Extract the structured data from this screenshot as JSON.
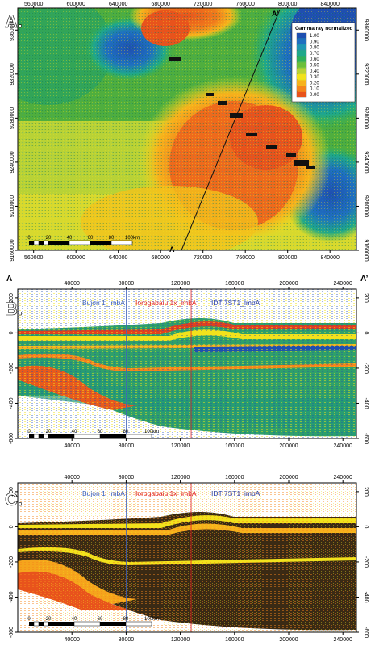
{
  "panels": [
    {
      "label": "A.",
      "type": "heatmap",
      "section_start": "A",
      "section_end": "A’",
      "x_ticks": [
        "560000",
        "600000",
        "640000",
        "680000",
        "720000",
        "760000",
        "800000",
        "840000"
      ],
      "y_ticks": [
        "9360000",
        "9320000",
        "9280000",
        "9240000",
        "9200000",
        "9160000"
      ],
      "legend": {
        "title": "Gamma ray normalized",
        "entries": [
          {
            "value": "1.00",
            "color": "#1f4fb0"
          },
          {
            "value": "0.90",
            "color": "#1f6fc0"
          },
          {
            "value": "0.80",
            "color": "#1f96b4"
          },
          {
            "value": "0.70",
            "color": "#1fa88a"
          },
          {
            "value": "0.60",
            "color": "#2fb05a"
          },
          {
            "value": "0.50",
            "color": "#6cbf3a"
          },
          {
            "value": "0.40",
            "color": "#b8d236"
          },
          {
            "value": "0.30",
            "color": "#f2e21c"
          },
          {
            "value": "0.20",
            "color": "#f7b21c"
          },
          {
            "value": "0.10",
            "color": "#f5851c"
          },
          {
            "value": "0.00",
            "color": "#e8531c"
          }
        ]
      },
      "scale_bar": {
        "ticks": [
          "0",
          "20",
          "40",
          "60",
          "80",
          "100km"
        ]
      }
    },
    {
      "label": "B.",
      "type": "heatmap",
      "section_start": "A",
      "section_end": "A’",
      "x_ticks": [
        "40000",
        "80000",
        "120000",
        "160000",
        "200000",
        "240000"
      ],
      "y_ticks": [
        "200",
        "0",
        "-200",
        "-400",
        "-600"
      ],
      "wells": [
        {
          "name": "Bujon 1_imbA",
          "color": "#3a5fc0",
          "x": 80000
        },
        {
          "name": "Iorogabaiu 1x_imbA",
          "color": "#e02020",
          "x": 128000
        },
        {
          "name": "IDT 7ST1_imbA",
          "color": "#2a3fa8",
          "x": 142000
        }
      ],
      "scale_bar": {
        "ticks": [
          "0",
          "20",
          "40",
          "60",
          "80",
          "100km"
        ]
      }
    },
    {
      "label": "C.",
      "type": "heatmap",
      "section_start": "",
      "section_end": "",
      "x_ticks": [
        "40000",
        "80000",
        "120000",
        "160000",
        "200000",
        "240000"
      ],
      "y_ticks": [
        "200",
        "0",
        "-200",
        "-400",
        "-600"
      ],
      "wells": [
        {
          "name": "Bujon 1_imbA",
          "color": "#3a5fc0",
          "x": 80000
        },
        {
          "name": "Iorogabaiu 1x_imbA",
          "color": "#e02020",
          "x": 128000
        },
        {
          "name": "IDT 7ST1_imbA",
          "color": "#2a3fa8",
          "x": 142000
        }
      ],
      "scale_bar": {
        "ticks": [
          "0",
          "20",
          "40",
          "60",
          "80",
          "100km"
        ]
      }
    }
  ],
  "chart_data": [
    {
      "type": "heatmap",
      "title": "",
      "legend_title": "Gamma ray normalized",
      "x_ticks": [
        560000,
        600000,
        640000,
        680000,
        720000,
        760000,
        800000,
        840000
      ],
      "y_ticks": [
        9360000,
        9320000,
        9280000,
        9240000,
        9200000,
        9160000
      ],
      "xlim": [
        545000,
        865000
      ],
      "ylim": [
        9160000,
        9380000
      ],
      "value_range": [
        0.0,
        1.0
      ],
      "section_line": {
        "from": "A",
        "to": "A’",
        "start": [
          697000,
          9158000
        ],
        "end": [
          775000,
          9375000
        ]
      },
      "grid": false,
      "legend_position": "top-right"
    },
    {
      "type": "heatmap",
      "title": "",
      "x_ticks": [
        40000,
        80000,
        120000,
        160000,
        200000,
        240000
      ],
      "y_ticks": [
        200,
        0,
        -200,
        -400,
        -600
      ],
      "xlim": [
        0,
        250000
      ],
      "ylim": [
        -600,
        250
      ],
      "wells": [
        {
          "name": "Bujon 1_imbA",
          "x": 80000
        },
        {
          "name": "Iorogabaiu 1x_imbA",
          "x": 128000
        },
        {
          "name": "IDT 7ST1_imbA",
          "x": 142000
        }
      ],
      "grid": false
    },
    {
      "type": "heatmap",
      "title": "",
      "x_ticks": [
        40000,
        80000,
        120000,
        160000,
        200000,
        240000
      ],
      "y_ticks": [
        200,
        0,
        -200,
        -400,
        -600
      ],
      "xlim": [
        0,
        250000
      ],
      "ylim": [
        -600,
        250
      ],
      "wells": [
        {
          "name": "Bujon 1_imbA",
          "x": 80000
        },
        {
          "name": "Iorogabaiu 1x_imbA",
          "x": 128000
        },
        {
          "name": "IDT 7ST1_imbA",
          "x": 142000
        }
      ],
      "grid": false
    }
  ]
}
